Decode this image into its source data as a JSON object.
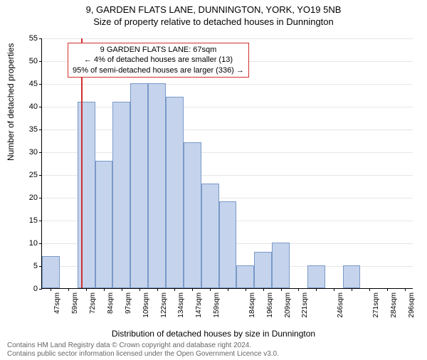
{
  "title": "9, GARDEN FLATS LANE, DUNNINGTON, YORK, YO19 5NB",
  "subtitle": "Size of property relative to detached houses in Dunnington",
  "ylabel": "Number of detached properties",
  "xlabel": "Distribution of detached houses by size in Dunnington",
  "footer_line1": "Contains HM Land Registry data © Crown copyright and database right 2024.",
  "footer_line2": "Contains public sector information licensed under the Open Government Licence v3.0.",
  "chart": {
    "type": "histogram",
    "categories": [
      "47sqm",
      "59sqm",
      "72sqm",
      "84sqm",
      "97sqm",
      "109sqm",
      "122sqm",
      "134sqm",
      "147sqm",
      "159sqm",
      "",
      "184sqm",
      "196sqm",
      "209sqm",
      "221sqm",
      "",
      "246sqm",
      "",
      "271sqm",
      "284sqm",
      "296sqm"
    ],
    "values": [
      7,
      0,
      41,
      28,
      41,
      45,
      45,
      42,
      32,
      23,
      19,
      5,
      8,
      10,
      0,
      5,
      0,
      5,
      0,
      0,
      0
    ],
    "ylim_max": 55,
    "yticks": [
      0,
      5,
      10,
      15,
      20,
      25,
      30,
      35,
      40,
      45,
      50,
      55
    ],
    "bar_fill": "#c5d4ec",
    "bar_border": "#7a99c9",
    "grid_color": "#e6e6e6",
    "background": "#ffffff",
    "marker_index_fractional": 1.7,
    "marker_color": "#d03030",
    "annotation": {
      "line1": "9 GARDEN FLATS LANE: 67sqm",
      "line2": "← 4% of detached houses are smaller (13)",
      "line3": "95% of semi-detached houses are larger (336) →"
    },
    "title_fontsize": 13,
    "label_fontsize": 12,
    "tick_fontsize": 11,
    "xtick_fontsize": 10,
    "annotation_fontsize": 11
  }
}
